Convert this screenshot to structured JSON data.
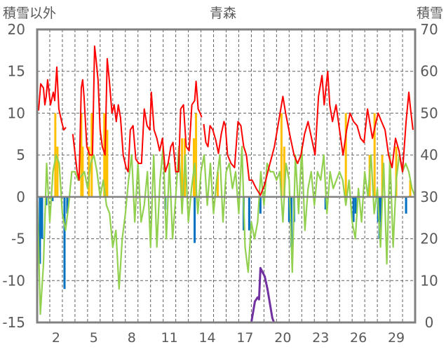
{
  "chart_data": {
    "type": "line",
    "title": "青森",
    "ylabel_left": "積雪以外",
    "ylabel_right": "積雪",
    "xlim": [
      0,
      30
    ],
    "ylim_left": [
      -15,
      20
    ],
    "ylim_right": [
      0,
      70
    ],
    "yticks_left": [
      -15,
      -10,
      -5,
      0,
      5,
      10,
      15,
      20
    ],
    "yticks_right": [
      0,
      10,
      20,
      30,
      40,
      50,
      60,
      70
    ],
    "xticks": [
      2,
      5,
      8,
      11,
      14,
      17,
      20,
      23,
      26,
      29
    ],
    "grid": true,
    "colors": {
      "red": "#ff0000",
      "green": "#92d050",
      "orange": "#ffc000",
      "blue": "#0070c0",
      "purple": "#7030a0",
      "axis": "#808080",
      "text": "#595959"
    },
    "series": [
      {
        "name": "red",
        "axis": "left",
        "kind": "line",
        "points": [
          [
            0.11,
            10.3
          ],
          [
            0.28,
            13.5
          ],
          [
            0.5,
            13
          ],
          [
            0.61,
            11
          ],
          [
            0.72,
            12
          ],
          [
            0.83,
            14
          ],
          [
            1.06,
            11
          ],
          [
            1.28,
            12.5
          ],
          [
            1.39,
            11.5
          ],
          [
            1.56,
            15.5
          ],
          [
            1.72,
            10.5
          ],
          [
            1.94,
            9
          ],
          [
            2.11,
            8
          ],
          [
            2.28,
            8.3
          ],
          null,
          [
            2.83,
            7.5
          ],
          [
            3.17,
            3
          ],
          [
            3.33,
            2
          ],
          [
            3.5,
            13
          ],
          [
            3.61,
            14
          ],
          [
            3.72,
            12
          ],
          [
            3.94,
            6
          ],
          [
            4.17,
            5
          ],
          [
            4.39,
            5
          ],
          [
            4.56,
            18
          ],
          [
            4.67,
            16.5
          ],
          [
            4.83,
            14
          ],
          [
            5.0,
            8
          ],
          [
            5.17,
            6
          ],
          [
            5.39,
            5
          ],
          [
            5.56,
            16.5
          ],
          [
            5.72,
            14
          ],
          [
            5.94,
            10
          ],
          [
            6.11,
            11
          ],
          [
            6.28,
            9
          ],
          [
            6.44,
            11
          ],
          [
            6.61,
            9.5
          ],
          [
            6.83,
            5
          ],
          [
            7.06,
            3.5
          ],
          [
            7.22,
            3
          ],
          [
            7.39,
            8
          ],
          [
            7.61,
            8.5
          ],
          [
            7.83,
            4.5
          ],
          [
            8.06,
            4
          ],
          [
            8.28,
            4
          ],
          [
            8.5,
            10.5
          ],
          [
            8.72,
            8.5
          ],
          [
            8.94,
            8
          ],
          [
            9.06,
            12.5
          ],
          [
            9.28,
            8
          ],
          [
            9.5,
            7
          ],
          [
            9.72,
            5.5
          ],
          [
            9.94,
            7
          ],
          [
            10.17,
            3
          ],
          [
            10.39,
            4
          ],
          [
            10.61,
            6
          ],
          [
            10.78,
            6.5
          ],
          [
            11.0,
            3
          ],
          [
            11.22,
            3
          ],
          [
            11.39,
            10.5
          ],
          [
            11.61,
            11
          ],
          [
            11.83,
            6
          ],
          [
            12.06,
            5.5
          ],
          [
            12.28,
            11
          ],
          [
            12.5,
            11.5
          ],
          [
            12.61,
            13.8
          ],
          [
            12.78,
            10.5
          ],
          [
            12.94,
            10
          ],
          [
            13.06,
            9.5
          ],
          null,
          [
            13.22,
            8.7
          ],
          [
            13.39,
            6.5
          ],
          [
            13.56,
            6
          ],
          [
            13.72,
            8.5
          ],
          [
            13.94,
            8
          ],
          [
            14.17,
            6.8
          ],
          [
            14.39,
            5.2
          ],
          [
            14.61,
            7.5
          ],
          [
            14.83,
            9
          ],
          [
            14.94,
            8.5
          ],
          [
            15.11,
            5
          ],
          [
            15.39,
            4
          ],
          [
            15.67,
            3.5
          ],
          [
            15.94,
            9
          ],
          [
            16.17,
            8.5
          ],
          [
            16.39,
            6
          ],
          [
            16.61,
            5
          ],
          [
            16.83,
            2
          ],
          [
            17.06,
            2
          ],
          [
            17.39,
            1
          ],
          [
            17.72,
            0.2
          ],
          [
            18.06,
            1.5
          ],
          [
            18.39,
            3.5
          ],
          [
            18.83,
            6
          ],
          [
            19.28,
            10
          ],
          [
            19.5,
            12
          ],
          [
            19.72,
            10
          ],
          [
            20.11,
            7
          ],
          [
            20.39,
            5
          ],
          [
            20.67,
            4
          ],
          [
            20.94,
            5
          ],
          [
            21.22,
            7.5
          ],
          [
            21.5,
            9
          ],
          [
            21.78,
            7
          ],
          [
            22.06,
            5
          ],
          [
            22.33,
            12
          ],
          [
            22.61,
            14.5
          ],
          [
            22.78,
            11
          ],
          [
            23.06,
            15
          ],
          [
            23.22,
            11
          ],
          [
            23.44,
            9
          ],
          [
            23.72,
            11
          ],
          [
            24.0,
            8
          ],
          [
            24.28,
            5
          ],
          [
            24.56,
            8
          ],
          [
            24.83,
            10
          ],
          [
            25.11,
            9
          ],
          [
            25.39,
            8.5
          ],
          [
            25.67,
            7
          ],
          [
            25.94,
            6.5
          ],
          [
            26.22,
            10.5
          ],
          [
            26.39,
            9
          ],
          [
            26.61,
            7
          ],
          [
            26.83,
            8.5
          ],
          [
            27.06,
            10
          ],
          [
            27.33,
            9
          ],
          [
            27.61,
            8
          ],
          [
            27.89,
            5
          ],
          [
            28.17,
            3.5
          ],
          [
            28.44,
            7
          ],
          [
            28.72,
            5.5
          ],
          [
            29.0,
            3
          ],
          [
            29.28,
            9
          ],
          [
            29.5,
            12.5
          ],
          [
            29.67,
            10
          ],
          [
            29.83,
            8
          ]
        ]
      },
      {
        "name": "green",
        "axis": "left",
        "kind": "line",
        "start": 0,
        "step": 0.25,
        "values": [
          1,
          -14,
          -8,
          4,
          -3,
          3,
          5,
          4,
          -2,
          -4,
          -1,
          3,
          3,
          2,
          2.5,
          3,
          1,
          4,
          5,
          3,
          0,
          2,
          -1,
          -2,
          -6,
          -4,
          -11,
          -5,
          -2,
          2,
          5,
          -3,
          4,
          -3,
          -1,
          3,
          -6,
          5,
          -6,
          2,
          6,
          -5,
          4,
          -5,
          0,
          6,
          -2,
          5,
          -3,
          1,
          4,
          -2,
          3,
          5,
          -1,
          4,
          -2,
          2,
          5,
          -3,
          3,
          4,
          1,
          3,
          -2,
          6,
          -6,
          -9,
          -3,
          -5,
          -3,
          3,
          -1,
          4,
          3,
          3,
          2,
          3,
          -3,
          4,
          2,
          -9,
          5,
          -2,
          6,
          -4,
          1,
          3,
          -1,
          3,
          2,
          5,
          -2,
          3,
          1,
          2,
          3,
          2,
          -1,
          2,
          -3,
          -5,
          1,
          -3,
          3,
          0,
          5,
          -2,
          1,
          -6,
          4,
          -8,
          5,
          -6,
          2,
          5,
          3,
          4,
          3,
          1,
          0
        ]
      },
      {
        "name": "orange",
        "axis": "left",
        "kind": "bar",
        "points": [
          [
            1.44,
            10
          ],
          [
            1.61,
            6
          ],
          [
            3.5,
            10
          ],
          [
            3.61,
            6
          ],
          [
            4.11,
            6
          ],
          [
            4.33,
            10
          ],
          [
            5.33,
            10
          ],
          [
            5.44,
            10
          ],
          [
            5.56,
            8
          ],
          [
            11.5,
            7
          ],
          [
            11.72,
            7
          ],
          [
            12.44,
            7
          ],
          [
            12.61,
            10
          ],
          [
            14.33,
            3
          ],
          [
            19.39,
            10
          ],
          [
            19.61,
            6
          ],
          [
            24.5,
            10
          ],
          [
            26.39,
            5
          ],
          [
            26.78,
            10
          ],
          [
            27.39,
            5
          ],
          [
            28.5,
            6
          ],
          [
            29.61,
            2
          ]
        ]
      },
      {
        "name": "blue",
        "axis": "left",
        "kind": "bar",
        "points": [
          [
            0.22,
            -8
          ],
          [
            0.39,
            -5
          ],
          [
            0.72,
            -1
          ],
          [
            1.22,
            -0.5
          ],
          [
            2.17,
            -11
          ],
          [
            2.39,
            -2
          ],
          [
            10.17,
            -1.5
          ],
          [
            12.5,
            -5.5
          ],
          [
            16.39,
            -4
          ],
          [
            16.83,
            -4
          ],
          [
            17.72,
            -2
          ],
          [
            20.0,
            -3
          ],
          [
            20.17,
            -6
          ],
          [
            20.39,
            -3
          ],
          [
            22.89,
            -1.5
          ],
          [
            25.11,
            -3
          ],
          [
            25.28,
            -2
          ],
          [
            27.06,
            -3
          ],
          [
            27.17,
            -5
          ],
          [
            27.28,
            -3
          ],
          [
            29.28,
            -2
          ]
        ]
      },
      {
        "name": "purple",
        "axis": "right",
        "kind": "line",
        "points": [
          [
            0,
            0
          ],
          [
            17.0,
            0
          ],
          [
            17.28,
            5
          ],
          [
            17.5,
            6
          ],
          [
            17.61,
            5.5
          ],
          [
            17.72,
            13
          ],
          [
            17.89,
            12
          ],
          [
            18.06,
            11
          ],
          [
            18.28,
            8
          ],
          [
            18.5,
            4
          ],
          [
            18.67,
            1
          ],
          [
            18.8,
            0
          ],
          [
            30,
            0
          ]
        ]
      }
    ]
  }
}
